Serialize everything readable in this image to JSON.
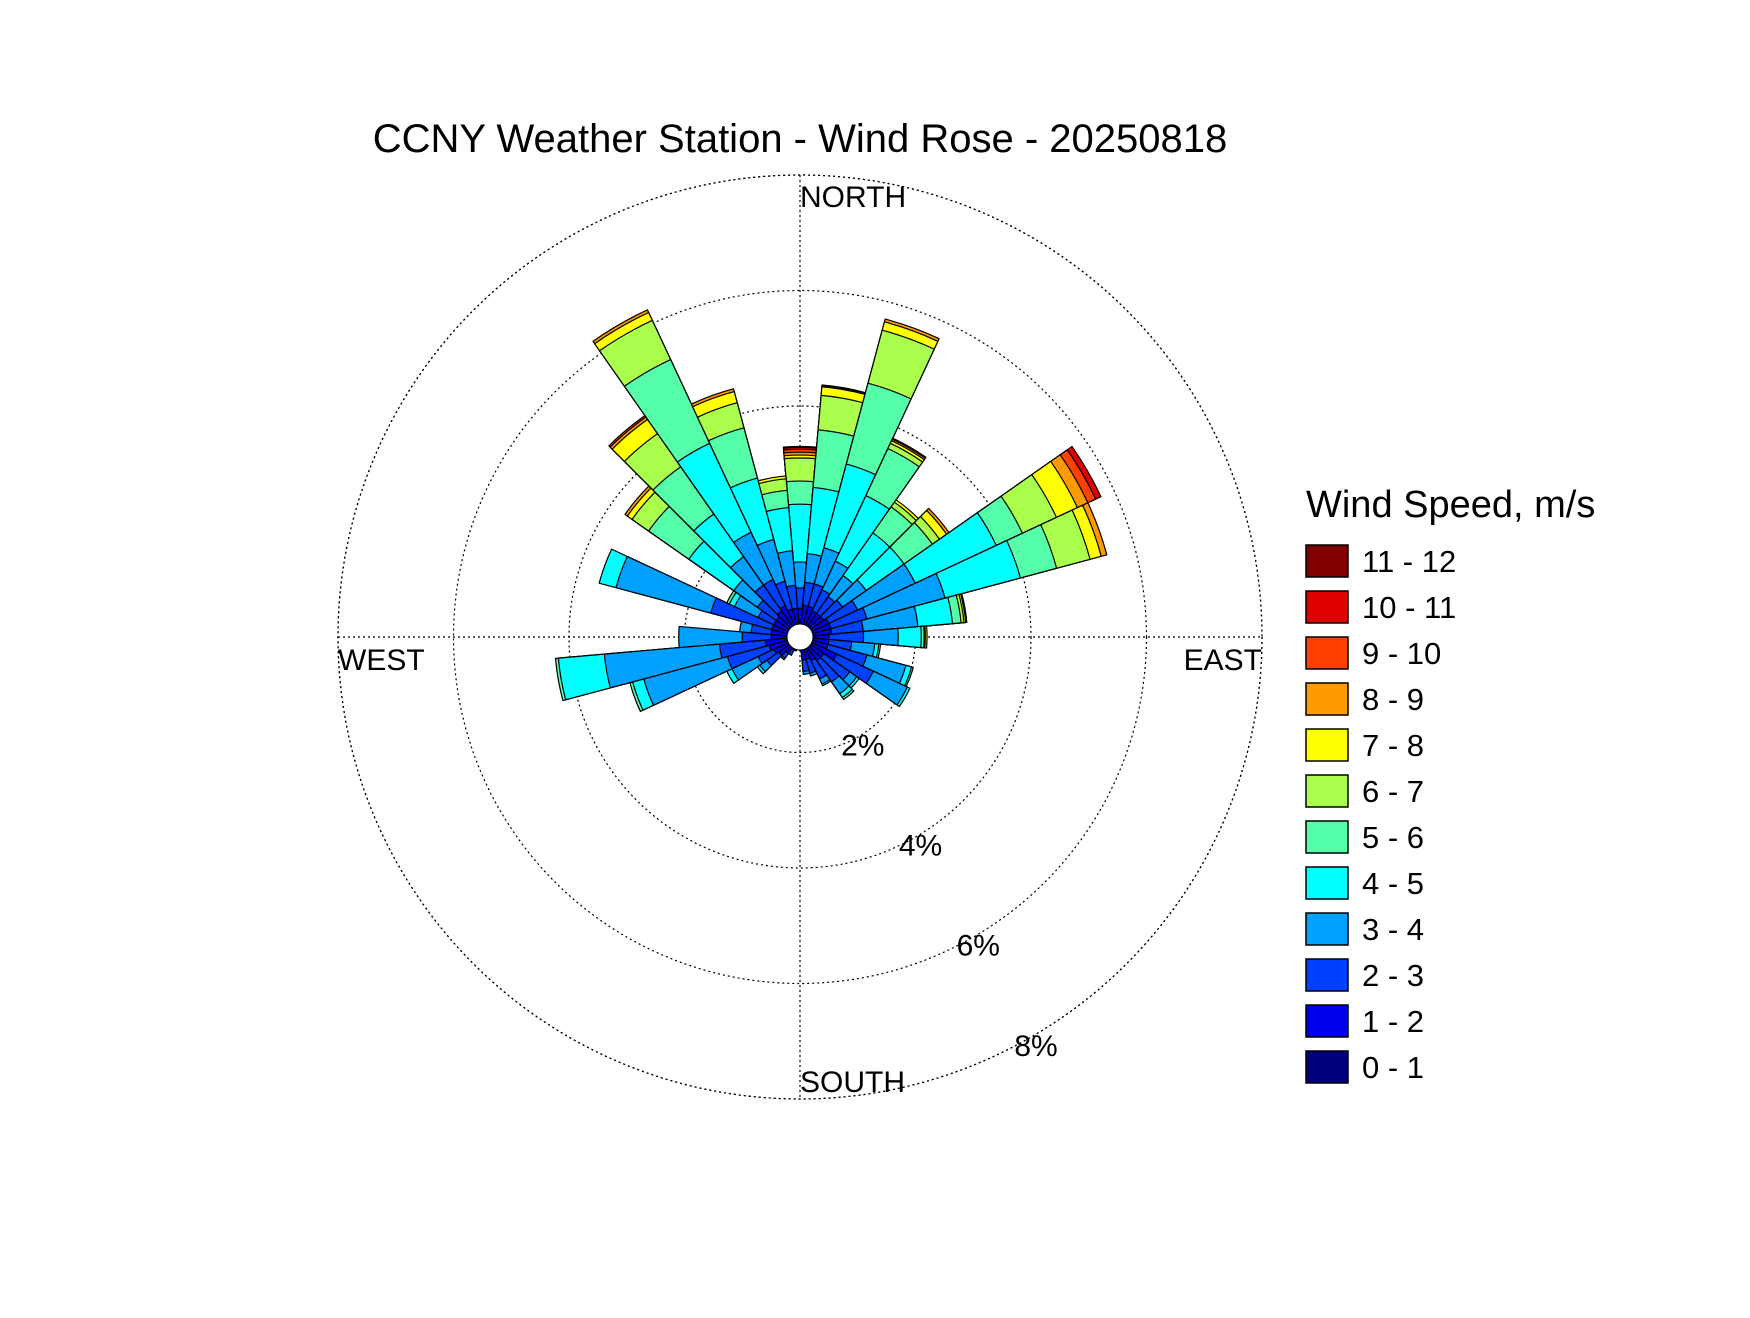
{
  "chart_data": {
    "type": "polar-bar",
    "title": "CCNY Weather Station - Wind Rose - 20250818",
    "direction_labels": {
      "north": "NORTH",
      "east": "EAST",
      "south": "SOUTH",
      "west": "WEST"
    },
    "radial_unit": "%",
    "radial_ticks": [
      {
        "value": 2,
        "label": "2%"
      },
      {
        "value": 4,
        "label": "4%"
      },
      {
        "value": 6,
        "label": "6%"
      },
      {
        "value": 8,
        "label": "8%"
      }
    ],
    "radial_max": 8,
    "grid": true,
    "sector_width_deg": 10,
    "legend": {
      "title": "Wind Speed, m/s",
      "placement": "right",
      "entries": [
        {
          "label": "11 - 12",
          "color": "#800000"
        },
        {
          "label": "10 - 11",
          "color": "#e00000"
        },
        {
          "label": "9 - 10",
          "color": "#ff4000"
        },
        {
          "label": "8 - 9",
          "color": "#ff9a00"
        },
        {
          "label": "7 - 8",
          "color": "#ffff00"
        },
        {
          "label": "6 - 7",
          "color": "#aaff4d"
        },
        {
          "label": "5 - 6",
          "color": "#55ffaa"
        },
        {
          "label": "4 - 5",
          "color": "#00ffff"
        },
        {
          "label": "3 - 4",
          "color": "#00a0ff"
        },
        {
          "label": "2 - 3",
          "color": "#0040ff"
        },
        {
          "label": "1 - 2",
          "color": "#0000ee"
        },
        {
          "label": "0 - 1",
          "color": "#00007f"
        }
      ]
    },
    "speed_bins": [
      "0 - 1",
      "1 - 2",
      "2 - 3",
      "3 - 4",
      "4 - 5",
      "5 - 6",
      "6 - 7",
      "7 - 8",
      "8 - 9",
      "9 - 10",
      "10 - 11",
      "11 - 12"
    ],
    "sectors": [
      {
        "direction_deg": 0,
        "cumulative_percent": [
          0.2,
          0.5,
          0.85,
          1.3,
          2.3,
          2.7,
          3.1,
          3.15,
          3.2,
          3.25,
          3.28,
          3.3
        ]
      },
      {
        "direction_deg": 10,
        "cumulative_percent": [
          0.2,
          0.55,
          0.95,
          1.45,
          2.6,
          3.6,
          4.2,
          4.35,
          4.37,
          4.38
        ]
      },
      {
        "direction_deg": 20,
        "cumulative_percent": [
          0.2,
          0.55,
          0.95,
          1.6,
          3.1,
          4.55,
          5.5,
          5.65,
          5.7
        ]
      },
      {
        "direction_deg": 30,
        "cumulative_percent": [
          0.2,
          0.5,
          0.9,
          1.45,
          2.7,
          3.6,
          3.7,
          3.75,
          3.78,
          3.8
        ]
      },
      {
        "direction_deg": 40,
        "cumulative_percent": [
          0.2,
          0.5,
          0.85,
          1.3,
          2.2,
          2.75,
          2.85,
          2.9
        ]
      },
      {
        "direction_deg": 50,
        "cumulative_percent": [
          0.2,
          0.5,
          0.9,
          1.4,
          2.2,
          2.8,
          2.95,
          3.1,
          3.15
        ]
      },
      {
        "direction_deg": 60,
        "cumulative_percent": [
          0.2,
          0.55,
          1.1,
          2.2,
          3.75,
          4.25,
          4.9,
          5.3,
          5.5,
          5.65,
          5.75
        ]
      },
      {
        "direction_deg": 70,
        "cumulative_percent": [
          0.2,
          0.55,
          1.2,
          2.6,
          3.95,
          4.6,
          5.2,
          5.4,
          5.5
        ]
      },
      {
        "direction_deg": 80,
        "cumulative_percent": [
          0.2,
          0.55,
          1.1,
          2.05,
          2.65,
          2.8,
          2.85,
          2.88,
          2.9
        ]
      },
      {
        "direction_deg": 90,
        "cumulative_percent": [
          0.2,
          0.5,
          1.1,
          1.7,
          2.1,
          2.15,
          2.17,
          2.2
        ]
      },
      {
        "direction_deg": 100,
        "cumulative_percent": [
          0.2,
          0.5,
          0.9,
          1.3,
          1.37,
          1.4
        ]
      },
      {
        "direction_deg": 110,
        "cumulative_percent": [
          0.2,
          0.5,
          1.2,
          1.9,
          2.0,
          2.03
        ]
      },
      {
        "direction_deg": 120,
        "cumulative_percent": [
          0.25,
          0.7,
          1.4,
          2.05,
          2.1
        ]
      },
      {
        "direction_deg": 130,
        "cumulative_percent": [
          0.2,
          0.5,
          1.05,
          1.2,
          1.25
        ]
      },
      {
        "direction_deg": 140,
        "cumulative_percent": [
          0.2,
          0.5,
          0.95,
          1.2,
          1.28,
          1.32
        ]
      },
      {
        "direction_deg": 150,
        "cumulative_percent": [
          0.2,
          0.45,
          0.8,
          0.9,
          0.93
        ]
      },
      {
        "direction_deg": 160,
        "cumulative_percent": [
          0.2,
          0.4,
          0.65,
          0.7
        ]
      },
      {
        "direction_deg": 170,
        "cumulative_percent": [
          0.2,
          0.4,
          0.6,
          0.65
        ]
      },
      {
        "direction_deg": 180,
        "cumulative_percent": [
          0.15,
          0.22
        ]
      },
      {
        "direction_deg": 190,
        "cumulative_percent": [
          0.15,
          0.2
        ]
      },
      {
        "direction_deg": 200,
        "cumulative_percent": [
          0.15,
          0.2,
          0.25
        ]
      },
      {
        "direction_deg": 210,
        "cumulative_percent": [
          0.15,
          0.25,
          0.35
        ]
      },
      {
        "direction_deg": 220,
        "cumulative_percent": [
          0.2,
          0.35,
          0.45,
          0.48
        ]
      },
      {
        "direction_deg": 230,
        "cumulative_percent": [
          0.2,
          0.45,
          0.7,
          0.85,
          0.9
        ]
      },
      {
        "direction_deg": 240,
        "cumulative_percent": [
          0.2,
          0.5,
          0.8,
          1.3,
          1.4
        ]
      },
      {
        "direction_deg": 250,
        "cumulative_percent": [
          0.2,
          0.55,
          1.3,
          2.8,
          3.0,
          3.05
        ]
      },
      {
        "direction_deg": 260,
        "cumulative_percent": [
          0.2,
          0.6,
          1.4,
          3.4,
          4.2,
          4.25
        ]
      },
      {
        "direction_deg": 270,
        "cumulative_percent": [
          0.2,
          0.5,
          1.0,
          2.1
        ]
      },
      {
        "direction_deg": 280,
        "cumulative_percent": [
          0.2,
          0.5,
          0.85,
          1.05
        ]
      },
      {
        "direction_deg": 290,
        "cumulative_percent": [
          0.2,
          0.5,
          1.6,
          3.3,
          3.6
        ]
      },
      {
        "direction_deg": 300,
        "cumulative_percent": [
          0.2,
          0.5,
          0.8,
          1.25,
          1.35,
          1.4
        ]
      },
      {
        "direction_deg": 310,
        "cumulative_percent": [
          0.2,
          0.5,
          0.9,
          1.4,
          2.35,
          3.2,
          3.55,
          3.65,
          3.7
        ]
      },
      {
        "direction_deg": 320,
        "cumulative_percent": [
          0.2,
          0.55,
          1.1,
          1.7,
          2.6,
          3.6,
          4.3,
          4.6,
          4.65,
          4.68
        ]
      },
      {
        "direction_deg": 330,
        "cumulative_percent": [
          0.2,
          0.6,
          1.1,
          2.0,
          3.7,
          5.3,
          6.05,
          6.2,
          6.25
        ]
      },
      {
        "direction_deg": 340,
        "cumulative_percent": [
          0.2,
          0.5,
          1.0,
          1.75,
          2.85,
          3.75,
          4.2,
          4.4,
          4.45
        ]
      },
      {
        "direction_deg": 350,
        "cumulative_percent": [
          0.2,
          0.5,
          0.9,
          1.5,
          2.25,
          2.55,
          2.75,
          2.8
        ]
      }
    ]
  }
}
